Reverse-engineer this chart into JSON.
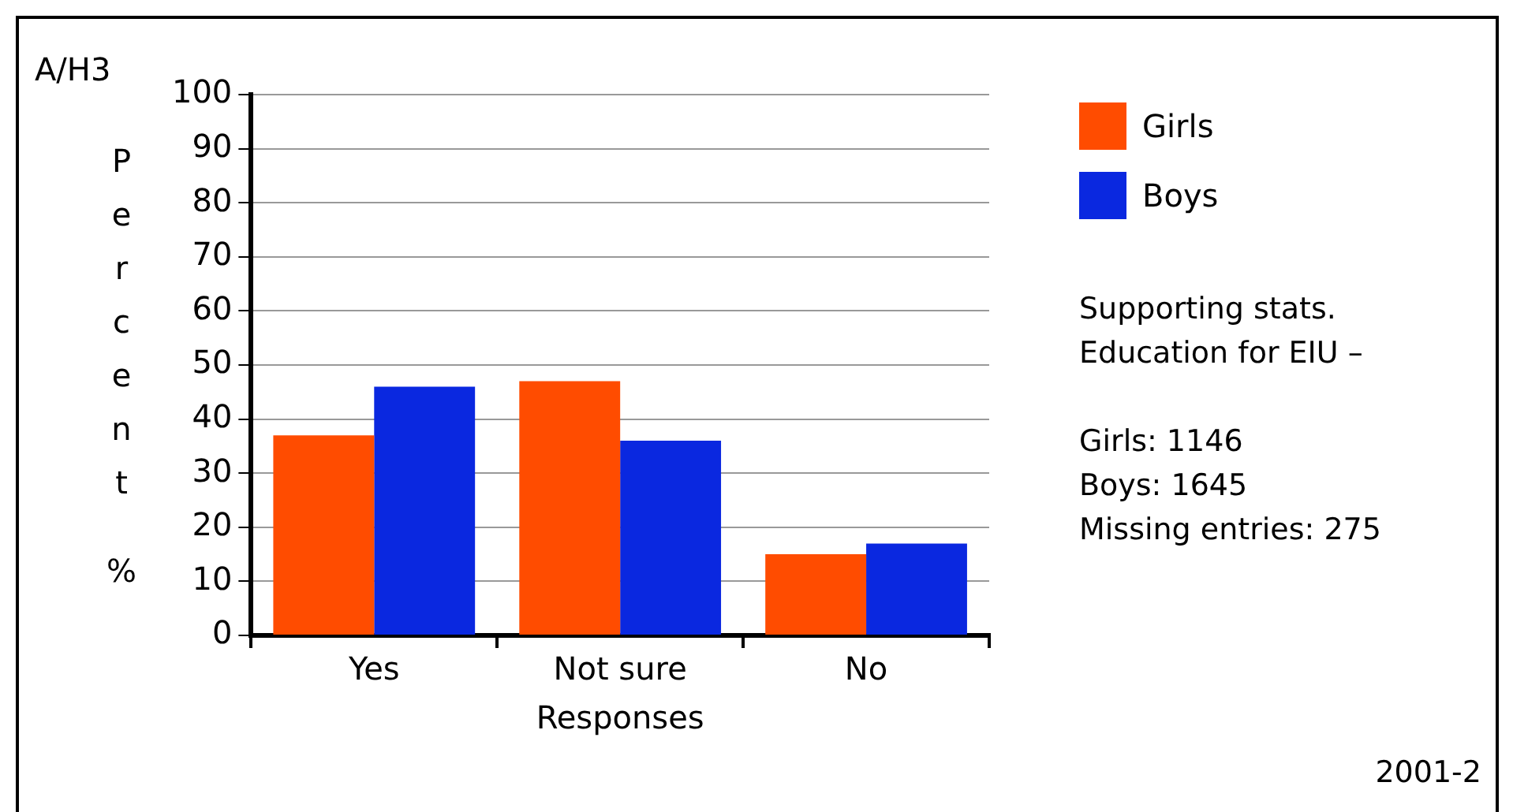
{
  "chart_data": {
    "type": "bar",
    "title": "A/H3",
    "xlabel": "Responses",
    "ylabel": "Percent %",
    "categories": [
      "Yes",
      "Not sure",
      "No"
    ],
    "series": [
      {
        "name": "Girls",
        "color": "#ff4c00",
        "values": [
          37,
          47,
          15
        ]
      },
      {
        "name": "Boys",
        "color": "#0a28e0",
        "values": [
          46,
          36,
          17
        ]
      }
    ],
    "ylim": [
      0,
      100
    ],
    "yticks": [
      0,
      10,
      20,
      30,
      40,
      50,
      60,
      70,
      80,
      90,
      100
    ],
    "grid": "y",
    "legend": "top right",
    "annotations": [
      "Supporting stats. Education for EIU –",
      "Girls: 1146",
      "Boys: 1645",
      "Missing entries: 275",
      "2001-2"
    ]
  }
}
